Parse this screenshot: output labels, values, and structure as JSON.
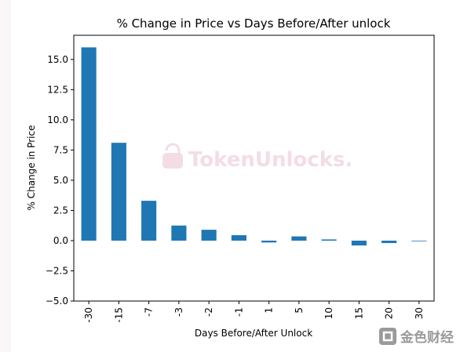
{
  "chart_data": {
    "type": "bar",
    "title": "% Change in Price vs Days Before/After unlock",
    "xlabel": "Days Before/After Unlock",
    "ylabel": "% Change in Price",
    "categories": [
      "-30",
      "-15",
      "-7",
      "-3",
      "-2",
      "-1",
      "1",
      "5",
      "10",
      "15",
      "20",
      "30"
    ],
    "values": [
      16.0,
      8.1,
      3.3,
      1.25,
      0.9,
      0.45,
      -0.15,
      0.35,
      0.1,
      -0.4,
      -0.2,
      -0.05
    ],
    "ylim": [
      -5.0,
      17.0
    ],
    "yticks": [
      "−5.0",
      "−2.5",
      "0.0",
      "2.5",
      "5.0",
      "7.5",
      "10.0",
      "12.5",
      "15.0"
    ],
    "ytick_values": [
      -5.0,
      -2.5,
      0.0,
      2.5,
      5.0,
      7.5,
      10.0,
      12.5,
      15.0
    ],
    "bar_color": "#1f77b4",
    "grid": false,
    "legend": "none"
  },
  "watermarks": {
    "center": "TokenUnlocks.",
    "corner": "金色财经"
  }
}
